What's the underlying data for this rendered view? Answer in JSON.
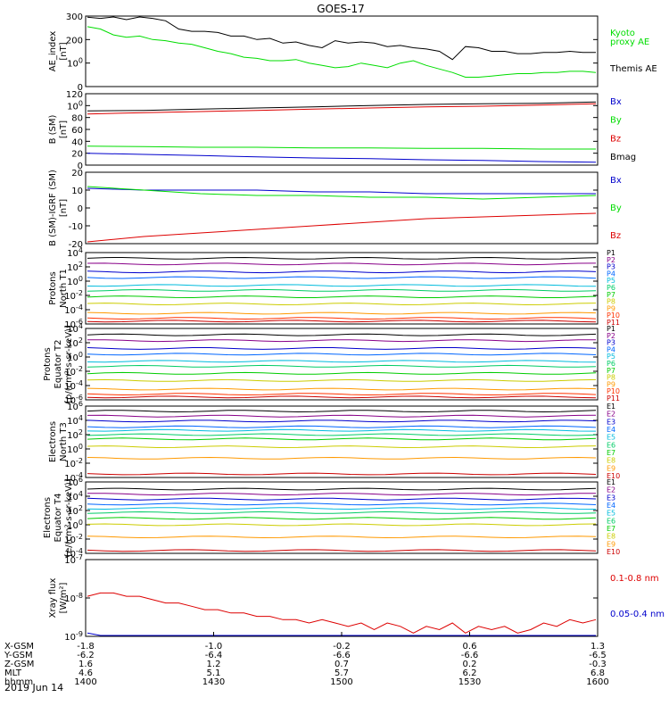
{
  "title": "GOES-17",
  "date": "2019 Jun 14",
  "colors": {
    "black": "#000000",
    "red": "#dd0000",
    "green": "#00dd00",
    "blue": "#0000cc",
    "p_series": [
      "#000000",
      "#880088",
      "#0000cc",
      "#0066ff",
      "#00bbdd",
      "#00cc66",
      "#00cc00",
      "#cccc00",
      "#ff9900",
      "#ff3300",
      "#cc0000"
    ],
    "e_series": [
      "#000000",
      "#880088",
      "#0000cc",
      "#0066ff",
      "#00bbdd",
      "#00cc66",
      "#00cc00",
      "#cccc00",
      "#ff9900",
      "#cc0000"
    ]
  },
  "chart_data": [
    {
      "type": "line",
      "id": "ae",
      "ylabel": [
        "AE_index",
        "[nT]"
      ],
      "ylim": [
        0,
        300
      ],
      "yticks": [
        "0",
        "100",
        "200",
        "300"
      ],
      "legend": [
        {
          "text": "Kyoto",
          "color": "green"
        },
        {
          "text": "proxy AE",
          "color": "green"
        },
        {
          "text": "Themis AE",
          "color": "black"
        }
      ],
      "series": [
        {
          "name": "Themis AE",
          "color": "black",
          "values": [
            295,
            290,
            305,
            285,
            300,
            290,
            280,
            245,
            235,
            235,
            230,
            215,
            215,
            200,
            205,
            185,
            190,
            175,
            165,
            195,
            185,
            190,
            185,
            170,
            175,
            165,
            160,
            150,
            115,
            170,
            165,
            150,
            150,
            140,
            140,
            145,
            145,
            150,
            145,
            145
          ]
        },
        {
          "name": "Kyoto proxy AE",
          "color": "green",
          "values": [
            255,
            245,
            220,
            210,
            215,
            200,
            195,
            185,
            180,
            165,
            150,
            140,
            125,
            120,
            110,
            110,
            115,
            100,
            90,
            80,
            85,
            100,
            90,
            80,
            100,
            110,
            90,
            75,
            60,
            40,
            40,
            45,
            50,
            55,
            55,
            60,
            60,
            65,
            65,
            60
          ]
        }
      ]
    },
    {
      "type": "line",
      "id": "bsm",
      "ylabel": [
        "B (SM)",
        "[nT]"
      ],
      "ylim": [
        0,
        120
      ],
      "yticks": [
        "0",
        "20",
        "40",
        "60",
        "80",
        "100",
        "120"
      ],
      "legend": [
        {
          "text": "Bx",
          "color": "blue"
        },
        {
          "text": "By",
          "color": "green"
        },
        {
          "text": "Bz",
          "color": "red"
        },
        {
          "text": "Bmag",
          "color": "black"
        }
      ],
      "series": [
        {
          "name": "Bmag",
          "color": "black",
          "values": [
            91,
            92,
            94,
            96,
            98,
            100,
            102,
            103,
            104,
            106
          ]
        },
        {
          "name": "Bz",
          "color": "red",
          "values": [
            86,
            88,
            90,
            92,
            94,
            96,
            98,
            99,
            101,
            103
          ]
        },
        {
          "name": "By",
          "color": "green",
          "values": [
            32,
            31,
            30,
            30,
            29,
            29,
            28,
            28,
            27,
            27
          ]
        },
        {
          "name": "Bx",
          "color": "blue",
          "values": [
            20,
            18,
            16,
            14,
            12,
            11,
            9,
            8,
            6,
            5
          ]
        }
      ]
    },
    {
      "type": "line",
      "id": "bigrf",
      "ylabel": [
        "B (SM)-IGRF (SM)",
        "[nT]"
      ],
      "ylim": [
        -20,
        20
      ],
      "yticks": [
        "-20",
        "-10",
        "0",
        "10",
        "20"
      ],
      "legend": [
        {
          "text": "Bx",
          "color": "blue"
        },
        {
          "text": "By",
          "color": "green"
        },
        {
          "text": "Bz",
          "color": "red"
        }
      ],
      "series": [
        {
          "name": "Bx",
          "color": "blue",
          "values": [
            11,
            10,
            10,
            10,
            9,
            9,
            8,
            8,
            8,
            8
          ]
        },
        {
          "name": "By",
          "color": "green",
          "values": [
            12,
            10,
            8,
            7,
            7,
            6,
            6,
            5,
            6,
            7
          ]
        },
        {
          "name": "Bz",
          "color": "red",
          "values": [
            -19,
            -16,
            -14,
            -12,
            -10,
            -8,
            -6,
            -5,
            -4,
            -3
          ]
        }
      ]
    },
    {
      "type": "line",
      "id": "p_north",
      "log": true,
      "ylabel": [
        "Protons",
        "North T1"
      ],
      "ylim": [
        -6,
        4
      ],
      "yticks": [
        "10-6",
        "10-4",
        "10-2",
        "100",
        "102",
        "104"
      ],
      "legend": [
        {
          "text": "P1"
        },
        {
          "text": "P2"
        },
        {
          "text": "P3"
        },
        {
          "text": "P4"
        },
        {
          "text": "P5"
        },
        {
          "text": "P6"
        },
        {
          "text": "P7"
        },
        {
          "text": "P8"
        },
        {
          "text": "P9"
        },
        {
          "text": "P10"
        },
        {
          "text": "P11"
        }
      ],
      "levels": [
        3.2,
        2.4,
        1.3,
        0.5,
        -0.6,
        -1.3,
        -2.2,
        -3.2,
        -4.5,
        -5.2,
        -5.6
      ]
    },
    {
      "type": "line",
      "id": "p_eq",
      "log": true,
      "ylabel": [
        "Protons",
        "Equator T2",
        "[p/(cm²-s-sr-keV)]"
      ],
      "ylim": [
        -6,
        4
      ],
      "yticks": [
        "10-6",
        "10-4",
        "10-2",
        "100",
        "102",
        "104"
      ],
      "legend": [
        {
          "text": "P1"
        },
        {
          "text": "P2"
        },
        {
          "text": "P3"
        },
        {
          "text": "P4"
        },
        {
          "text": "P5"
        },
        {
          "text": "P6"
        },
        {
          "text": "P7"
        },
        {
          "text": "P8"
        },
        {
          "text": "P9"
        },
        {
          "text": "P10"
        },
        {
          "text": "P11"
        }
      ],
      "levels": [
        3.1,
        2.3,
        1.2,
        0.4,
        -0.6,
        -1.3,
        -2.3,
        -3.3,
        -4.5,
        -5.2,
        -5.6
      ]
    },
    {
      "type": "line",
      "id": "e_north",
      "log": true,
      "ylabel": [
        "Electrons",
        "North T3"
      ],
      "ylim": [
        -4,
        6
      ],
      "yticks": [
        "10-4",
        "10-2",
        "100",
        "102",
        "104",
        "106"
      ],
      "legend": [
        {
          "text": "E1"
        },
        {
          "text": "E2"
        },
        {
          "text": "E3"
        },
        {
          "text": "E4"
        },
        {
          "text": "E5"
        },
        {
          "text": "E6"
        },
        {
          "text": "E7"
        },
        {
          "text": "E8"
        },
        {
          "text": "E9"
        },
        {
          "text": "E10"
        }
      ],
      "levels": [
        5.3,
        4.6,
        3.9,
        3.1,
        2.6,
        2.0,
        1.4,
        0.3,
        -1.3,
        -3.5
      ]
    },
    {
      "type": "line",
      "id": "e_eq",
      "log": true,
      "ylabel": [
        "Electrons",
        "Equator T4",
        "[e/(cm²-s-sr-keV)]"
      ],
      "ylim": [
        -4,
        6
      ],
      "yticks": [
        "10-4",
        "10-2",
        "100",
        "102",
        "104",
        "106"
      ],
      "legend": [
        {
          "text": "E1"
        },
        {
          "text": "E2"
        },
        {
          "text": "E3"
        },
        {
          "text": "E4"
        },
        {
          "text": "E5"
        },
        {
          "text": "E6"
        },
        {
          "text": "E7"
        },
        {
          "text": "E8"
        },
        {
          "text": "E9"
        },
        {
          "text": "E10"
        }
      ],
      "levels": [
        5.0,
        4.3,
        3.6,
        2.9,
        2.3,
        1.7,
        0.9,
        0.0,
        -1.7,
        -3.6
      ]
    },
    {
      "type": "line",
      "id": "xray",
      "log": true,
      "ylabel": [
        "Xray flux",
        "[W/m²]"
      ],
      "ylim": [
        -9.3,
        -7
      ],
      "yticks": [
        "10-9",
        "10-8",
        "10-7"
      ],
      "legend": [
        {
          "text": "0.1-0.8 nm",
          "color": "red"
        },
        {
          "text": "0.05-0.4 nm",
          "color": "blue"
        }
      ],
      "series": [
        {
          "name": "0.1-0.8 nm",
          "color": "red",
          "values": [
            -8.1,
            -8.0,
            -8.0,
            -8.1,
            -8.1,
            -8.2,
            -8.3,
            -8.3,
            -8.4,
            -8.5,
            -8.5,
            -8.6,
            -8.6,
            -8.7,
            -8.7,
            -8.8,
            -8.8,
            -8.9,
            -8.8,
            -8.9,
            -9.0,
            -8.9,
            -9.1,
            -8.9,
            -9.0,
            -9.2,
            -9.0,
            -9.1,
            -8.9,
            -9.2,
            -9.0,
            -9.1,
            -9.0,
            -9.2,
            -9.1,
            -8.9,
            -9.0,
            -8.8,
            -8.9,
            -8.8
          ]
        },
        {
          "name": "0.05-0.4 nm",
          "color": "blue",
          "values": [
            -9.2,
            -9.3,
            -9.3,
            -9.3,
            -9.3,
            -9.3,
            -9.3,
            -9.3,
            -9.3,
            -9.3,
            -9.3,
            -9.3,
            -9.3,
            -9.3,
            -9.3,
            -9.3,
            -9.3,
            -9.3,
            -9.3,
            -9.3,
            -9.3,
            -9.3,
            -9.3,
            -9.3,
            -9.3,
            -9.3,
            -9.3,
            -9.3,
            -9.3,
            -9.3,
            -9.3,
            -9.3,
            -9.3,
            -9.3,
            -9.3,
            -9.3,
            -9.3,
            -9.3,
            -9.3,
            -9.3
          ]
        }
      ]
    }
  ],
  "xaxis": {
    "rows": [
      {
        "label": "X-GSM",
        "values": [
          "-1.8",
          "-1.0",
          "-0.2",
          "0.6",
          "1.3"
        ]
      },
      {
        "label": "Y-GSM",
        "values": [
          "-6.2",
          "-6.4",
          "-6.6",
          "-6.6",
          "-6.5"
        ]
      },
      {
        "label": "Z-GSM",
        "values": [
          "1.6",
          "1.2",
          "0.7",
          "0.2",
          "-0.3"
        ]
      },
      {
        "label": "MLT",
        "values": [
          "4.6",
          "5.1",
          "5.7",
          "6.2",
          "6.8"
        ]
      },
      {
        "label": "hhmm",
        "values": [
          "1400",
          "1430",
          "1500",
          "1530",
          "1600"
        ]
      }
    ]
  }
}
